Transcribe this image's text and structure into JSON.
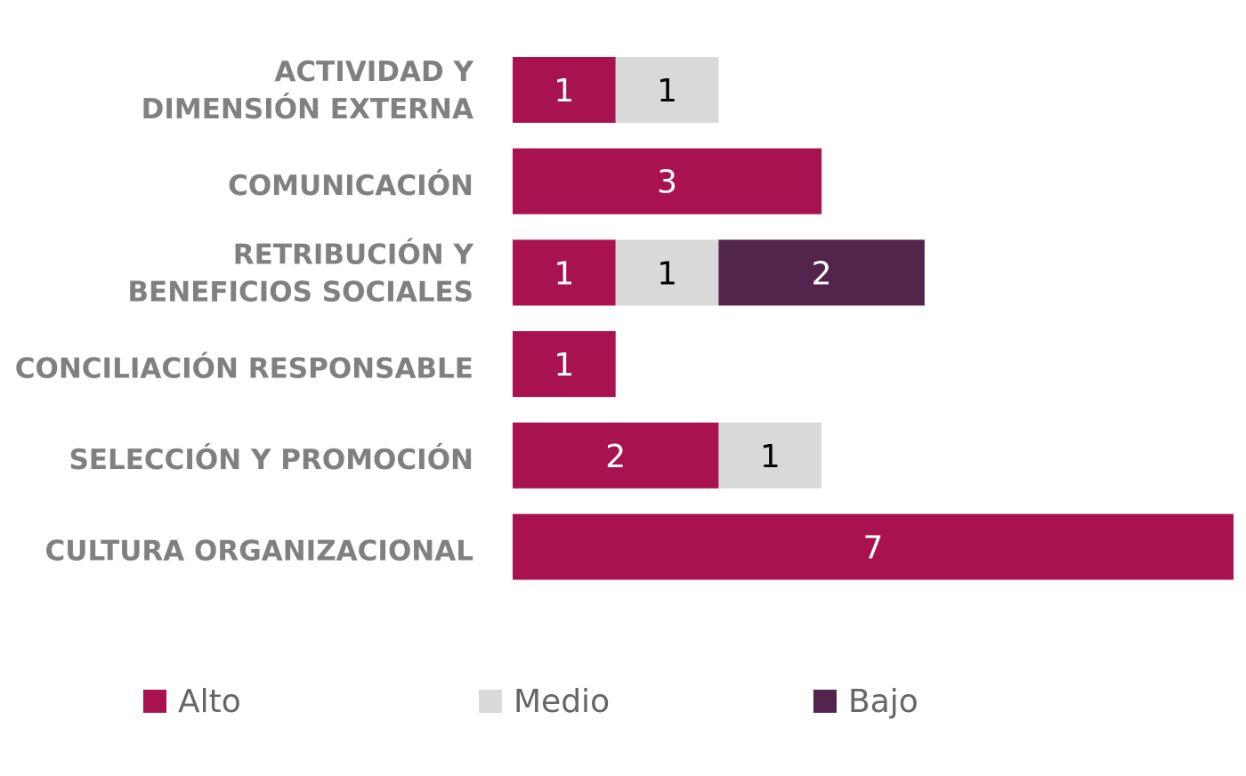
{
  "chart_data": {
    "type": "bar",
    "orientation": "horizontal",
    "stacked": true,
    "categories": [
      "ACTIVIDAD Y DIMENSIÓN EXTERNA",
      "COMUNICACIÓN",
      "RETRIBUCIÓN Y BENEFICIOS SOCIALES",
      "CONCILIACIÓN RESPONSABLE",
      "SELECCIÓN Y PROMOCIÓN",
      "CULTURA ORGANIZACIONAL"
    ],
    "category_lines": [
      [
        "ACTIVIDAD Y",
        "DIMENSIÓN EXTERNA"
      ],
      [
        "COMUNICACIÓN"
      ],
      [
        "RETRIBUCIÓN Y",
        "BENEFICIOS SOCIALES"
      ],
      [
        "CONCILIACIÓN RESPONSABLE"
      ],
      [
        "SELECCIÓN Y PROMOCIÓN"
      ],
      [
        "CULTURA ORGANIZACIONAL"
      ]
    ],
    "series": [
      {
        "name": "Alto",
        "color": "#A8134F",
        "label_color": "#ffffff",
        "values": [
          1,
          3,
          1,
          1,
          2,
          7
        ]
      },
      {
        "name": "Medio",
        "color": "#D9D9D9",
        "label_color": "#000000",
        "values": [
          1,
          0,
          1,
          0,
          1,
          0
        ]
      },
      {
        "name": "Bajo",
        "color": "#53254C",
        "label_color": "#ffffff",
        "values": [
          0,
          0,
          2,
          0,
          0,
          0
        ]
      }
    ],
    "xlim": [
      0,
      7
    ],
    "grid": false,
    "axes_visible": false,
    "legend_position": "bottom"
  }
}
